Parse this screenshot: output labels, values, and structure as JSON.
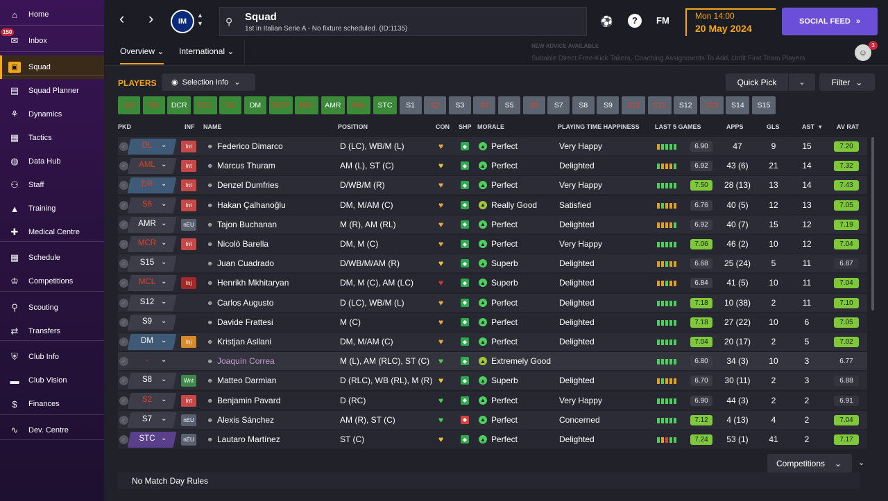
{
  "sidebar": {
    "items": [
      {
        "label": "Home",
        "icon": "home-icon"
      },
      {
        "label": "Inbox",
        "icon": "inbox-icon",
        "badge": "150"
      },
      {
        "label": "Squad",
        "icon": "squad-icon",
        "active": true
      },
      {
        "label": "Squad Planner",
        "icon": "clipboard-icon"
      },
      {
        "label": "Dynamics",
        "icon": "dynamics-icon"
      },
      {
        "label": "Tactics",
        "icon": "tactics-icon"
      },
      {
        "label": "Data Hub",
        "icon": "data-hub-icon"
      },
      {
        "label": "Staff",
        "icon": "staff-icon"
      },
      {
        "label": "Training",
        "icon": "training-icon"
      },
      {
        "label": "Medical Centre",
        "icon": "medical-icon"
      },
      {
        "label": "Schedule",
        "icon": "calendar-icon"
      },
      {
        "label": "Competitions",
        "icon": "trophy-icon"
      },
      {
        "label": "Scouting",
        "icon": "search-icon"
      },
      {
        "label": "Transfers",
        "icon": "transfer-icon"
      },
      {
        "label": "Club Info",
        "icon": "shield-icon"
      },
      {
        "label": "Club Vision",
        "icon": "briefcase-icon"
      },
      {
        "label": "Finances",
        "icon": "finance-icon"
      },
      {
        "label": "Dev. Centre",
        "icon": "dev-centre-icon"
      }
    ]
  },
  "topbar": {
    "crest_text": "IM",
    "title": "Squad",
    "subtitle": "1st in Italian Serie A - No fixture scheduled. (ID:1135)",
    "fm_label": "FM",
    "help_label": "?",
    "time": "Mon 14:00",
    "date": "20 May 2024",
    "social_label": "SOCIAL FEED",
    "advisor_badge": "3"
  },
  "tabs": [
    {
      "label": "Overview"
    },
    {
      "label": "International"
    }
  ],
  "advice": {
    "heading": "NEW ADVICE AVAILABLE",
    "text": "Suitable Direct Free-Kick Takers, Coaching Assignments To Add, Unfit First Team Players"
  },
  "toolbar": {
    "players_label": "PLAYERS",
    "selection_info": "Selection Info",
    "quick_pick": "Quick Pick",
    "filter": "Filter"
  },
  "position_chips": [
    {
      "label": "GK",
      "style": "green-red"
    },
    {
      "label": "DR",
      "style": "green-red"
    },
    {
      "label": "DCR",
      "style": "green"
    },
    {
      "label": "DCL",
      "style": "green-red"
    },
    {
      "label": "DL",
      "style": "green-red"
    },
    {
      "label": "DM",
      "style": "green"
    },
    {
      "label": "MCR",
      "style": "green-red"
    },
    {
      "label": "MCL",
      "style": "green-red"
    },
    {
      "label": "AMR",
      "style": "green"
    },
    {
      "label": "AML",
      "style": "green-red"
    },
    {
      "label": "STC",
      "style": "green"
    },
    {
      "label": "S1",
      "style": "grey"
    },
    {
      "label": "S2",
      "style": "grey-red"
    },
    {
      "label": "S3",
      "style": "grey"
    },
    {
      "label": "S4",
      "style": "grey-red"
    },
    {
      "label": "S5",
      "style": "grey"
    },
    {
      "label": "S6",
      "style": "grey-red"
    },
    {
      "label": "S7",
      "style": "grey"
    },
    {
      "label": "S8",
      "style": "grey"
    },
    {
      "label": "S9",
      "style": "grey"
    },
    {
      "label": "S10",
      "style": "grey-red"
    },
    {
      "label": "S11",
      "style": "grey-red"
    },
    {
      "label": "S12",
      "style": "grey"
    },
    {
      "label": "S13",
      "style": "grey-red"
    },
    {
      "label": "S14",
      "style": "grey"
    },
    {
      "label": "S15",
      "style": "grey"
    }
  ],
  "columns": {
    "pkd": "PKD",
    "inf": "INF",
    "name": "NAME",
    "position": "POSITION",
    "con": "CON",
    "shp": "SHP",
    "morale": "MORALE",
    "pth": "PLAYING TIME HAPPINESS",
    "last5": "LAST 5 GAMES",
    "apps": "APPS",
    "gls": "GLS",
    "ast": "AST",
    "avrat": "AV RAT"
  },
  "players": [
    {
      "pkd": "DL",
      "pkd_style": "blue",
      "pkd_red": true,
      "inf": "Int",
      "inf_color": "#c84848",
      "name": "Federico Dimarco",
      "position": "D (LC), WB/M (L)",
      "con": "#e8a64a",
      "shp": "#2fa84f",
      "morale_color": "#4ccf5f",
      "morale": "Perfect",
      "pth": "Very Happy",
      "last5": [
        "#e0a020",
        "#4ccf5f",
        "#4ccf5f",
        "#4ccf5f",
        "#4ccf5f"
      ],
      "last5_val": "6.90",
      "last5_hi": false,
      "apps": "47",
      "gls": "9",
      "ast": "15",
      "avrat": "7.20",
      "avrat_hi": true
    },
    {
      "pkd": "AML",
      "pkd_style": "grey",
      "pkd_red": true,
      "inf": "Int",
      "inf_color": "#c84848",
      "name": "Marcus Thuram",
      "position": "AM (L), ST (C)",
      "con": "#e8c43a",
      "shp": "#2fa84f",
      "morale_color": "#4ccf5f",
      "morale": "Perfect",
      "pth": "Delighted",
      "last5": [
        "#4ccf5f",
        "#e0a020",
        "#e0a020",
        "#e0a020",
        "#4ccf5f"
      ],
      "last5_val": "6.92",
      "last5_hi": false,
      "apps": "43 (6)",
      "gls": "21",
      "ast": "14",
      "avrat": "7.32",
      "avrat_hi": true
    },
    {
      "pkd": "DR",
      "pkd_style": "blue",
      "pkd_red": true,
      "inf": "Int",
      "inf_color": "#c84848",
      "name": "Denzel Dumfries",
      "position": "D/WB/M (R)",
      "con": "#e8a64a",
      "shp": "#2fa84f",
      "morale_color": "#4ccf5f",
      "morale": "Perfect",
      "pth": "Very Happy",
      "last5": [
        "#4ccf5f",
        "#4ccf5f",
        "#4ccf5f",
        "#4ccf5f",
        "#4ccf5f"
      ],
      "last5_val": "7.50",
      "last5_hi": true,
      "apps": "28 (13)",
      "gls": "13",
      "ast": "14",
      "avrat": "7.43",
      "avrat_hi": true
    },
    {
      "pkd": "S6",
      "pkd_style": "grey",
      "pkd_red": true,
      "inf": "Int",
      "inf_color": "#c84848",
      "name": "Hakan Çalhanoğlu",
      "position": "DM, M/AM (C)",
      "con": "#e8a64a",
      "shp": "#2fa84f",
      "morale_color": "#9fc83a",
      "morale": "Really Good",
      "pth": "Satisfied",
      "last5": [
        "#e0a020",
        "#4ccf5f",
        "#e0a020",
        "#e0a020",
        "#e0a020"
      ],
      "last5_val": "6.76",
      "last5_hi": false,
      "apps": "40 (5)",
      "gls": "12",
      "ast": "13",
      "avrat": "7.05",
      "avrat_hi": true
    },
    {
      "pkd": "AMR",
      "pkd_style": "grey",
      "pkd_red": false,
      "inf": "nEU",
      "inf_color": "#5a6070",
      "name": "Tajon Buchanan",
      "position": "M (R), AM (RL)",
      "con": "#e8a64a",
      "shp": "#2fa84f",
      "morale_color": "#4ccf5f",
      "morale": "Perfect",
      "pth": "Delighted",
      "last5": [
        "#e0a020",
        "#e0a020",
        "#e0a020",
        "#e0a020",
        "#4ccf5f"
      ],
      "last5_val": "6.92",
      "last5_hi": false,
      "apps": "40 (7)",
      "gls": "15",
      "ast": "12",
      "avrat": "7.19",
      "avrat_hi": true
    },
    {
      "pkd": "MCR",
      "pkd_style": "grey",
      "pkd_red": true,
      "inf": "Int",
      "inf_color": "#c84848",
      "name": "Nicolò Barella",
      "position": "DM, M (C)",
      "con": "#e8a64a",
      "shp": "#2fa84f",
      "morale_color": "#4ccf5f",
      "morale": "Perfect",
      "pth": "Very Happy",
      "last5": [
        "#4ccf5f",
        "#4ccf5f",
        "#4ccf5f",
        "#4ccf5f",
        "#4ccf5f"
      ],
      "last5_val": "7.06",
      "last5_hi": true,
      "apps": "46 (2)",
      "gls": "10",
      "ast": "12",
      "avrat": "7.04",
      "avrat_hi": true
    },
    {
      "pkd": "S15",
      "pkd_style": "grey",
      "pkd_red": false,
      "inf": "",
      "inf_color": "",
      "name": "Juan Cuadrado",
      "position": "D/WB/M/AM (R)",
      "con": "#e8c43a",
      "shp": "#2fa84f",
      "morale_color": "#4ccf5f",
      "morale": "Superb",
      "pth": "Delighted",
      "last5": [
        "#e0a020",
        "#e0a020",
        "#4ccf5f",
        "#e0a020",
        "#e0a020"
      ],
      "last5_val": "6.68",
      "last5_hi": false,
      "apps": "25 (24)",
      "gls": "5",
      "ast": "11",
      "avrat": "6.87",
      "avrat_hi": false
    },
    {
      "pkd": "MCL",
      "pkd_style": "grey",
      "pkd_red": true,
      "inf": "Inj",
      "inf_color": "#a52828",
      "name": "Henrikh Mkhitaryan",
      "position": "DM, M (C), AM (LC)",
      "con": "#c83a3a",
      "shp": "#2fa84f",
      "morale_color": "#4ccf5f",
      "morale": "Superb",
      "pth": "Delighted",
      "last5": [
        "#e0a020",
        "#e0a020",
        "#4ccf5f",
        "#e0a020",
        "#e0a020"
      ],
      "last5_val": "6.84",
      "last5_hi": false,
      "apps": "41 (5)",
      "gls": "10",
      "ast": "11",
      "avrat": "7.04",
      "avrat_hi": true
    },
    {
      "pkd": "S12",
      "pkd_style": "grey",
      "pkd_red": false,
      "inf": "",
      "inf_color": "",
      "name": "Carlos Augusto",
      "position": "D (LC), WB/M (L)",
      "con": "#e8a64a",
      "shp": "#2fa84f",
      "morale_color": "#4ccf5f",
      "morale": "Perfect",
      "pth": "Delighted",
      "last5": [
        "#4ccf5f",
        "#4ccf5f",
        "#4ccf5f",
        "#4ccf5f",
        "#4ccf5f"
      ],
      "last5_val": "7.18",
      "last5_hi": true,
      "apps": "10 (38)",
      "gls": "2",
      "ast": "11",
      "avrat": "7.10",
      "avrat_hi": true
    },
    {
      "pkd": "S9",
      "pkd_style": "grey",
      "pkd_red": false,
      "inf": "",
      "inf_color": "",
      "name": "Davide Frattesi",
      "position": "M (C)",
      "con": "#e8a64a",
      "shp": "#2fa84f",
      "morale_color": "#4ccf5f",
      "morale": "Perfect",
      "pth": "Delighted",
      "last5": [
        "#4ccf5f",
        "#4ccf5f",
        "#4ccf5f",
        "#4ccf5f",
        "#4ccf5f"
      ],
      "last5_val": "7.18",
      "last5_hi": true,
      "apps": "27 (22)",
      "gls": "10",
      "ast": "6",
      "avrat": "7.05",
      "avrat_hi": true
    },
    {
      "pkd": "DM",
      "pkd_style": "blue",
      "pkd_red": false,
      "inf": "Inj",
      "inf_color": "#d88a28",
      "name": "Kristjan Asllani",
      "position": "DM, M/AM (C)",
      "con": "#e8a64a",
      "shp": "#2fa84f",
      "morale_color": "#4ccf5f",
      "morale": "Perfect",
      "pth": "Delighted",
      "last5": [
        "#4ccf5f",
        "#4ccf5f",
        "#4ccf5f",
        "#4ccf5f",
        "#4ccf5f"
      ],
      "last5_val": "7.04",
      "last5_hi": true,
      "apps": "20 (17)",
      "gls": "2",
      "ast": "5",
      "avrat": "7.02",
      "avrat_hi": true
    },
    {
      "pkd": "-",
      "pkd_style": "none",
      "pkd_red": true,
      "inf": "",
      "inf_color": "",
      "name": "Joaquín Correa",
      "name_color": "#c79bd8",
      "position": "M (L), AM (RLC), ST (C)",
      "con": "#4ccf5f",
      "shp": "#2fa84f",
      "morale_color": "#9fc83a",
      "morale": "Extremely Good",
      "pth": "",
      "last5": [
        "#4ccf5f",
        "#4ccf5f",
        "#4ccf5f",
        "#4ccf5f",
        "#4ccf5f"
      ],
      "last5_val": "6.80",
      "last5_hi": false,
      "apps": "34 (3)",
      "gls": "10",
      "ast": "3",
      "avrat": "6.77",
      "avrat_hi": false
    },
    {
      "pkd": "S8",
      "pkd_style": "grey",
      "pkd_red": false,
      "inf": "Wnt",
      "inf_color": "#3f8a4a",
      "name": "Matteo Darmian",
      "position": "D (RLC), WB (RL), M (R)",
      "con": "#e8c43a",
      "shp": "#2fa84f",
      "morale_color": "#4ccf5f",
      "morale": "Superb",
      "pth": "Delighted",
      "last5": [
        "#e0a020",
        "#4ccf5f",
        "#e0a020",
        "#e0a020",
        "#e0a020"
      ],
      "last5_val": "6.70",
      "last5_hi": false,
      "apps": "30 (11)",
      "gls": "2",
      "ast": "3",
      "avrat": "6.88",
      "avrat_hi": false
    },
    {
      "pkd": "S2",
      "pkd_style": "grey",
      "pkd_red": true,
      "inf": "Int",
      "inf_color": "#c84848",
      "name": "Benjamin Pavard",
      "position": "D (RC)",
      "con": "#4ccf5f",
      "shp": "#2fa84f",
      "morale_color": "#4ccf5f",
      "morale": "Perfect",
      "pth": "Very Happy",
      "last5": [
        "#4ccf5f",
        "#4ccf5f",
        "#4ccf5f",
        "#4ccf5f",
        "#4ccf5f"
      ],
      "last5_val": "6.90",
      "last5_hi": false,
      "apps": "44 (3)",
      "gls": "2",
      "ast": "2",
      "avrat": "6.91",
      "avrat_hi": false
    },
    {
      "pkd": "S7",
      "pkd_style": "grey",
      "pkd_red": false,
      "inf": "nEU",
      "inf_color": "#5a6070",
      "name": "Alexis Sánchez",
      "position": "AM (R), ST (C)",
      "con": "#4ccf5f",
      "shp": "#d84040",
      "morale_color": "#4ccf5f",
      "morale": "Perfect",
      "pth": "Concerned",
      "last5": [
        "#4ccf5f",
        "#4ccf5f",
        "#4ccf5f",
        "#4ccf5f",
        "#4ccf5f"
      ],
      "last5_val": "7.12",
      "last5_hi": true,
      "apps": "4 (13)",
      "gls": "4",
      "ast": "2",
      "avrat": "7.04",
      "avrat_hi": true
    },
    {
      "pkd": "STC",
      "pkd_style": "purple",
      "pkd_red": false,
      "inf": "nEU",
      "inf_color": "#5a6070",
      "name": "Lautaro Martínez",
      "position": "ST (C)",
      "con": "#e8c43a",
      "shp": "#2fa84f",
      "morale_color": "#4ccf5f",
      "morale": "Perfect",
      "pth": "Delighted",
      "last5": [
        "#4ccf5f",
        "#e0a020",
        "#d84040",
        "#4ccf5f",
        "#4ccf5f"
      ],
      "last5_val": "7.24",
      "last5_hi": true,
      "apps": "53 (1)",
      "gls": "41",
      "ast": "2",
      "avrat": "7.17",
      "avrat_hi": true
    }
  ],
  "footer": {
    "competitions": "Competitions",
    "match_rules": "No Match Day Rules"
  },
  "colors": {
    "accent": "#f3a61b",
    "social": "#6b4fd9",
    "rating_green": "#7ec83a"
  }
}
